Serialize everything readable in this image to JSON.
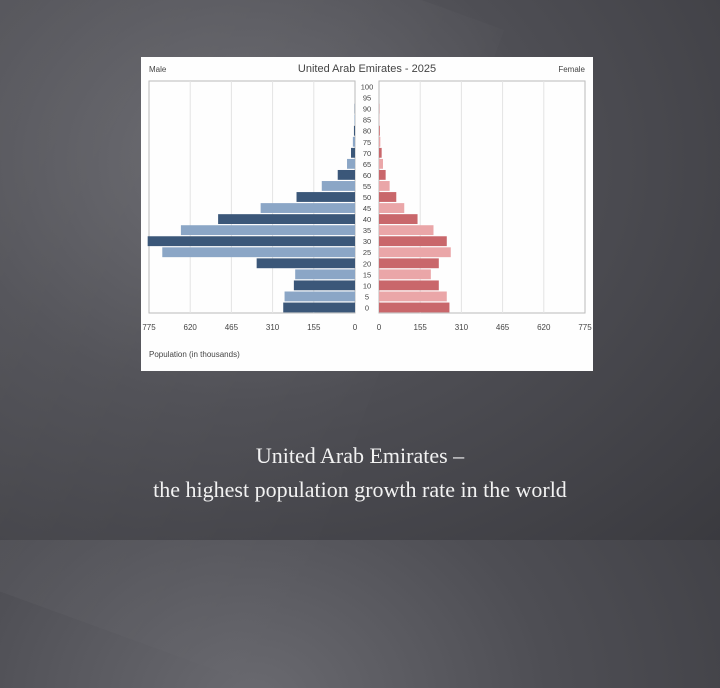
{
  "chart_data": {
    "type": "bar",
    "title": "United Arab Emirates - 2025",
    "left_label": "Male",
    "right_label": "Female",
    "xlabel": "Population (in thousands)",
    "xlim": [
      0,
      775
    ],
    "x_ticks": [
      775,
      620,
      465,
      310,
      155,
      0
    ],
    "age_groups": [
      "0",
      "5",
      "10",
      "15",
      "20",
      "25",
      "30",
      "35",
      "40",
      "45",
      "50",
      "55",
      "60",
      "65",
      "70",
      "75",
      "80",
      "85",
      "90",
      "95",
      "100"
    ],
    "series": [
      {
        "name": "Male",
        "color_a": "#3b5779",
        "color_b": "#8ba6c6",
        "values": [
          270,
          265,
          230,
          225,
          370,
          725,
          780,
          655,
          515,
          355,
          220,
          125,
          65,
          30,
          15,
          8,
          4,
          2,
          1,
          0,
          0
        ]
      },
      {
        "name": "Female",
        "color_a": "#c9676b",
        "color_b": "#eaa6a8",
        "values": [
          265,
          255,
          225,
          195,
          225,
          270,
          255,
          205,
          145,
          95,
          65,
          40,
          25,
          15,
          10,
          5,
          3,
          1,
          1,
          0,
          0
        ]
      }
    ]
  },
  "caption": {
    "line1": "United Arab Emirates –",
    "line2": "the highest population growth rate in the world"
  }
}
